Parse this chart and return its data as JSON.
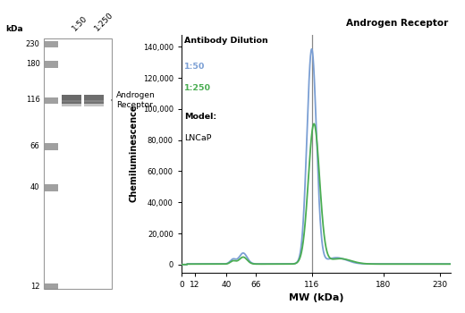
{
  "gel_bands": {
    "ladder_mw": [
      230,
      180,
      116,
      66,
      40,
      12
    ],
    "col_labels": [
      "1:50",
      "1:250"
    ],
    "kda_label": "kDa",
    "annotation": "Androgen\nReceptor",
    "annotation_mw": 116
  },
  "plot": {
    "title": "Androgen Receptor",
    "xlabel": "MW (kDa)",
    "ylabel": "Chemiluminescence",
    "xlim": [
      0,
      240
    ],
    "ylim": [
      -5000,
      148000
    ],
    "yticks": [
      0,
      20000,
      40000,
      60000,
      80000,
      100000,
      120000,
      140000
    ],
    "ytick_labels": [
      "0",
      "20,000",
      "40,000",
      "60,000",
      "80,000",
      "100,000",
      "120,000",
      "140,000"
    ],
    "xticks": [
      0,
      12,
      40,
      66,
      116,
      180,
      230
    ],
    "xtick_labels": [
      "0",
      "12",
      "40",
      "66",
      "116",
      "180",
      "230"
    ],
    "vline_x": 116,
    "legend_title": "Antibody Dilution",
    "model_label": "Model:",
    "model_name": "LNCaP",
    "color_1_50": "#7b9fd4",
    "color_1_250": "#4aad52",
    "background_color": "#ffffff"
  }
}
